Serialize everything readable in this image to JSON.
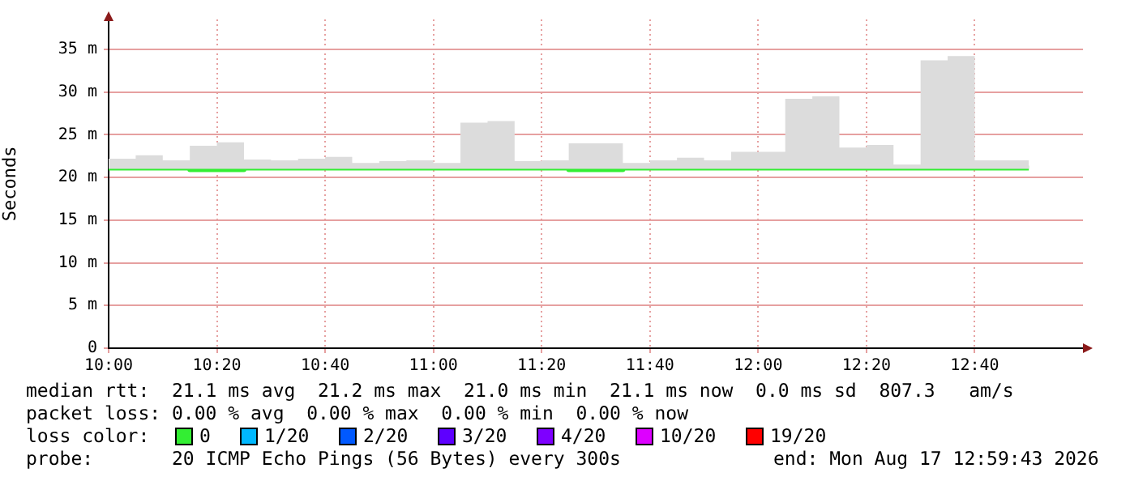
{
  "chart_data": {
    "type": "step",
    "ylabel": "Seconds",
    "x": [
      10,
      10.0833,
      10.1667,
      10.25,
      10.3333,
      10.4167,
      10.5,
      10.5833,
      10.6667,
      10.75,
      10.8333,
      10.9167,
      11,
      11.0833,
      11.1667,
      11.25,
      11.3333,
      11.4167,
      11.5,
      11.5833,
      11.6667,
      11.75,
      11.8333,
      11.9167,
      12,
      12.0833,
      12.1667,
      12.25,
      12.3333,
      12.4167,
      12.5,
      12.5833,
      12.6667,
      12.75,
      12.8333
    ],
    "series": [
      {
        "color": "#33ee33",
        "values": [
          21.1,
          21.1,
          21.1,
          20.9,
          20.9,
          21.1,
          21.1,
          21.1,
          21.1,
          21.1,
          21.1,
          21.1,
          21.1,
          21.1,
          21.1,
          21.1,
          21.1,
          20.9,
          20.9,
          21.1,
          21.1,
          21.1,
          21.1,
          21.1,
          21.1,
          21.1,
          21.1,
          21.1,
          21.1,
          21.1,
          21.1,
          21.1,
          21.1,
          21.1,
          21.1
        ],
        "lower": [
          21,
          21,
          21,
          21,
          21,
          21,
          21,
          21,
          21,
          21,
          21,
          21,
          21,
          21,
          21,
          21,
          21,
          21,
          21,
          21,
          21,
          21,
          21,
          21,
          21,
          21,
          21,
          21,
          21,
          21,
          21,
          21,
          21,
          21,
          21
        ],
        "upper": [
          22.2,
          22.6,
          22,
          23.7,
          24.1,
          22.1,
          22,
          22.2,
          22.4,
          21.7,
          21.9,
          22,
          21.7,
          26.4,
          26.6,
          21.9,
          22,
          24,
          24,
          21.7,
          22,
          22.3,
          22,
          23,
          23,
          29.2,
          29.5,
          23.5,
          23.8,
          21.5,
          33.7,
          34.2,
          22,
          22,
          22
        ]
      }
    ],
    "xlim": [
      10,
      13
    ],
    "xticks": [
      {
        "value": 10,
        "label": "10:00"
      },
      {
        "value": 10.3333,
        "label": "10:20"
      },
      {
        "value": 10.6667,
        "label": "10:40"
      },
      {
        "value": 11,
        "label": "11:00"
      },
      {
        "value": 11.3333,
        "label": "11:20"
      },
      {
        "value": 11.6667,
        "label": "11:40"
      },
      {
        "value": 12,
        "label": "12:00"
      },
      {
        "value": 12.3333,
        "label": "12:20"
      },
      {
        "value": 12.6667,
        "label": "12:40"
      }
    ],
    "ylim": [
      0,
      38.5
    ],
    "yticks": [
      0,
      {
        "value": 5,
        "label": "5 m"
      },
      {
        "value": 10,
        "label": "10 m"
      },
      {
        "value": 15,
        "label": "15 m"
      },
      {
        "value": 20,
        "label": "20 m"
      },
      {
        "value": 25,
        "label": "25 m"
      },
      {
        "value": 30,
        "label": "30 m"
      },
      {
        "value": 35,
        "label": "35 m"
      }
    ],
    "grid": true,
    "marker": "none",
    "line_style": "solid",
    "annotations": [
      "median rtt:  21.1 ms avg  21.2 ms max  21.0 ms min  21.1 ms now  0.0 ms sd  807.3   am/s",
      "packet loss: 0.00 % avg  0.00 % max  0.00 % min  0.00 % now",
      "loss color:",
      "0",
      "1/20",
      "2/20",
      "3/20",
      "4/20",
      "10/20",
      "19/20",
      "probe:       20 ICMP Echo Pings (56 Bytes) every 300s",
      "end: Mon Aug 17 12:59:43 2026"
    ]
  }
}
